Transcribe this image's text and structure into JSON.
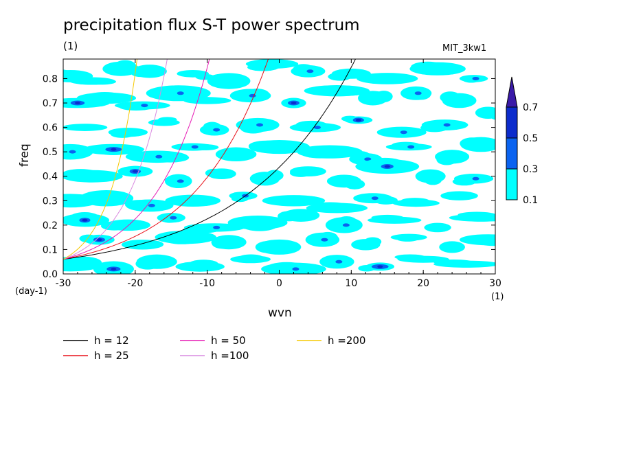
{
  "chart_data": {
    "type": "heatmap",
    "title": "precipitation flux S-T power spectrum",
    "subtitle": "(1)",
    "model_label": "MIT_3kw1",
    "xlabel": "wvn",
    "ylabel": "freq",
    "x_unit": "(1)",
    "y_unit": "(day-1)",
    "xlim": [
      -30,
      30
    ],
    "ylim": [
      0,
      0.88
    ],
    "x_ticks": [
      -30,
      -20,
      -10,
      0,
      10,
      20,
      30
    ],
    "x_tick_labels": [
      "-30",
      "-20",
      "-10",
      "0",
      "10",
      "20",
      "30"
    ],
    "y_ticks": [
      0,
      0.1,
      0.2,
      0.3,
      0.4,
      0.5,
      0.6,
      0.7,
      0.8
    ],
    "y_tick_labels": [
      "0.0",
      "0.1",
      "0.2",
      "0.3",
      "0.4",
      "0.5",
      "0.6",
      "0.7",
      "0.8"
    ],
    "grid": false,
    "colorbar": {
      "levels": [
        "0.1",
        "0.3",
        "0.5",
        "0.7"
      ],
      "colors": [
        "#00ffff",
        "#0a63f0",
        "#0c2ccc",
        "#3a1aa8"
      ]
    },
    "contour_field": {
      "description_levels": [
        0.1,
        0.3,
        0.5,
        0.7
      ],
      "cells": [
        [
          -29,
          0.81,
          1
        ],
        [
          -26,
          0.79,
          1
        ],
        [
          -22,
          0.84,
          1
        ],
        [
          -18,
          0.83,
          1
        ],
        [
          -12,
          0.82,
          1
        ],
        [
          -7,
          0.79,
          1
        ],
        [
          -1,
          0.86,
          1
        ],
        [
          4,
          0.83,
          1
        ],
        [
          10,
          0.82,
          1
        ],
        [
          15,
          0.8,
          1
        ],
        [
          22,
          0.84,
          1
        ],
        [
          27,
          0.8,
          1
        ],
        [
          -28,
          0.7,
          2
        ],
        [
          -24,
          0.72,
          1
        ],
        [
          -19,
          0.69,
          1
        ],
        [
          -14,
          0.74,
          1
        ],
        [
          -10,
          0.71,
          1
        ],
        [
          -4,
          0.73,
          1
        ],
        [
          2,
          0.7,
          2
        ],
        [
          8,
          0.75,
          1
        ],
        [
          13,
          0.72,
          1
        ],
        [
          19,
          0.74,
          1
        ],
        [
          25,
          0.71,
          1
        ],
        [
          29,
          0.66,
          1
        ],
        [
          -27,
          0.6,
          1
        ],
        [
          -21,
          0.58,
          1
        ],
        [
          -16,
          0.62,
          1
        ],
        [
          -9,
          0.59,
          1
        ],
        [
          -3,
          0.61,
          1
        ],
        [
          5,
          0.6,
          1
        ],
        [
          11,
          0.63,
          2
        ],
        [
          17,
          0.58,
          1
        ],
        [
          23,
          0.61,
          1
        ],
        [
          -29,
          0.5,
          1
        ],
        [
          -23,
          0.51,
          2
        ],
        [
          -17,
          0.48,
          1
        ],
        [
          -12,
          0.52,
          1
        ],
        [
          -6,
          0.49,
          1
        ],
        [
          0,
          0.52,
          1
        ],
        [
          7,
          0.5,
          1
        ],
        [
          12,
          0.47,
          1
        ],
        [
          18,
          0.52,
          1
        ],
        [
          24,
          0.48,
          1
        ],
        [
          28,
          0.53,
          1
        ],
        [
          -26,
          0.4,
          1
        ],
        [
          -20,
          0.42,
          2
        ],
        [
          -14,
          0.38,
          1
        ],
        [
          -8,
          0.41,
          1
        ],
        [
          -2,
          0.39,
          1
        ],
        [
          4,
          0.42,
          1
        ],
        [
          9,
          0.38,
          1
        ],
        [
          15,
          0.44,
          2
        ],
        [
          21,
          0.4,
          1
        ],
        [
          27,
          0.39,
          1
        ],
        [
          -29,
          0.3,
          1
        ],
        [
          -24,
          0.31,
          1
        ],
        [
          -18,
          0.28,
          1
        ],
        [
          -12,
          0.3,
          1
        ],
        [
          -5,
          0.32,
          1
        ],
        [
          2,
          0.3,
          1
        ],
        [
          8,
          0.27,
          1
        ],
        [
          13,
          0.31,
          1
        ],
        [
          19,
          0.29,
          1
        ],
        [
          25,
          0.32,
          1
        ],
        [
          -27,
          0.22,
          2
        ],
        [
          -21,
          0.2,
          1
        ],
        [
          -15,
          0.23,
          1
        ],
        [
          -9,
          0.19,
          1
        ],
        [
          -3,
          0.21,
          1
        ],
        [
          3,
          0.24,
          1
        ],
        [
          9,
          0.2,
          1
        ],
        [
          16,
          0.22,
          1
        ],
        [
          22,
          0.19,
          1
        ],
        [
          28,
          0.23,
          1
        ],
        [
          -25,
          0.14,
          2
        ],
        [
          -19,
          0.12,
          1
        ],
        [
          -13,
          0.15,
          1
        ],
        [
          -7,
          0.13,
          1
        ],
        [
          0,
          0.11,
          1
        ],
        [
          6,
          0.14,
          1
        ],
        [
          12,
          0.12,
          1
        ],
        [
          18,
          0.15,
          1
        ],
        [
          24,
          0.11,
          1
        ],
        [
          29,
          0.14,
          1
        ],
        [
          -29,
          0.04,
          1
        ],
        [
          -23,
          0.02,
          2
        ],
        [
          -17,
          0.05,
          1
        ],
        [
          -11,
          0.03,
          1
        ],
        [
          -4,
          0.06,
          1
        ],
        [
          2,
          0.02,
          1
        ],
        [
          8,
          0.05,
          1
        ],
        [
          14,
          0.03,
          2
        ],
        [
          20,
          0.06,
          1
        ],
        [
          26,
          0.04,
          1
        ]
      ]
    },
    "series": [
      {
        "name": "h = 12",
        "color": "#000000",
        "equivalent_depth": 12
      },
      {
        "name": "h = 25",
        "color": "#e8111a",
        "equivalent_depth": 25
      },
      {
        "name": "h = 50",
        "color": "#e619b4",
        "equivalent_depth": 50
      },
      {
        "name": "h =100",
        "color": "#d98ae0",
        "equivalent_depth": 100
      },
      {
        "name": "h =200",
        "color": "#f5c800",
        "equivalent_depth": 200
      }
    ]
  }
}
